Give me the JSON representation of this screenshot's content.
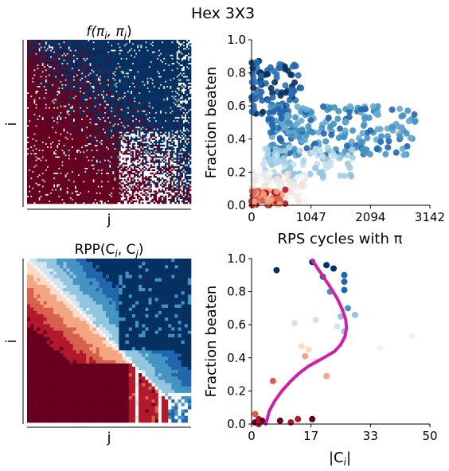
{
  "figure": {
    "title": "Hex 3X3"
  },
  "colors": {
    "dark_red": "#67001f",
    "dark_blue": "#053061",
    "curve": "#d21fa8"
  },
  "chart_data": [
    {
      "type": "heatmap",
      "title": "f(π_i, π_j)",
      "title_main": "f(π",
      "title_sub_i": "i",
      "title_mid": ", π",
      "title_sub_j": "j",
      "title_end": ")",
      "xlabel": "j",
      "ylabel": "i",
      "grid_size": 100,
      "description_values": "binary win matrix: lower-left mostly dark red (1), upper-right mostly dark blue (0), noisy near diagonal, white band near lower-right",
      "palette": [
        "#67001f",
        "#053061",
        "#ffffff"
      ]
    },
    {
      "type": "scatter",
      "xlabel": "RPS cycles with π",
      "ylabel": "Fraction beaten",
      "xlim": [
        0,
        3142
      ],
      "ylim": [
        0,
        1
      ],
      "xticks": [
        "0",
        "1047",
        "2094",
        "3142"
      ],
      "yticks": [
        "0.0",
        "0.2",
        "0.4",
        "0.6",
        "0.8",
        "1.0"
      ],
      "clusters": [
        {
          "name_hint": "dark blue cluster",
          "x_range": [
            0,
            900
          ],
          "y_range": [
            0.55,
            0.88
          ],
          "count": 90,
          "color": "#2166ac"
        },
        {
          "name_hint": "mid blue cluster",
          "x_range": [
            300,
            2900
          ],
          "y_range": [
            0.3,
            0.6
          ],
          "count": 260,
          "color": "#4393c3"
        },
        {
          "name_hint": "light blue cluster",
          "x_range": [
            200,
            1800
          ],
          "y_range": [
            0.15,
            0.35
          ],
          "count": 90,
          "color": "#92c5de"
        },
        {
          "name_hint": "near-white cluster",
          "x_range": [
            0,
            1000
          ],
          "y_range": [
            0.02,
            0.2
          ],
          "count": 80,
          "color": "#eef2f4"
        },
        {
          "name_hint": "red cluster",
          "x_range": [
            0,
            600
          ],
          "y_range": [
            0,
            0.1
          ],
          "count": 60,
          "color": "#d6604d"
        }
      ]
    },
    {
      "type": "heatmap",
      "title": "RPP(C_i, C_j)",
      "title_main": "RPP(C",
      "title_sub_i": "i",
      "title_mid": ", C",
      "title_sub_j": "j",
      "title_end": ")",
      "xlabel": "j",
      "ylabel": "i",
      "grid_size": 50,
      "description_values": "antisymmetric relative population performance: red gradient below diagonal, blue gradient above diagonal, solid dark red lower-left block, dark blue upper-right block",
      "palette": [
        "#67001f",
        "#b2182b",
        "#d6604d",
        "#f4a582",
        "#fddbc7",
        "#f7f7f7",
        "#d1e5f0",
        "#92c5de",
        "#4393c3",
        "#2166ac",
        "#053061"
      ]
    },
    {
      "type": "scatter",
      "xlabel": "|C_i|",
      "xlabel_main": "|C",
      "xlabel_sub": "i",
      "xlabel_end": "|",
      "ylabel": "Fraction beaten",
      "xlim": [
        0,
        50
      ],
      "ylim": [
        0,
        1
      ],
      "xticks": [
        "0",
        "17",
        "33",
        "50"
      ],
      "yticks": [
        "0.0",
        "0.2",
        "0.4",
        "0.6",
        "0.8",
        "1.0"
      ],
      "points": [
        {
          "x": 1,
          "y": 0.01,
          "c": "#67001f"
        },
        {
          "x": 2,
          "y": 0.03,
          "c": "#b2182b"
        },
        {
          "x": 1,
          "y": 0.06,
          "c": "#d6604d"
        },
        {
          "x": 3,
          "y": 0.02,
          "c": "#67001f"
        },
        {
          "x": 8,
          "y": 0.02,
          "c": "#67001f"
        },
        {
          "x": 11,
          "y": 0.01,
          "c": "#b2182b"
        },
        {
          "x": 13,
          "y": 0.03,
          "c": "#b2182b"
        },
        {
          "x": 17,
          "y": 0.03,
          "c": "#67001f"
        },
        {
          "x": 2,
          "y": 0.0,
          "c": "#b2182b"
        },
        {
          "x": 6,
          "y": 0.26,
          "c": "#d6604d"
        },
        {
          "x": 21,
          "y": 0.29,
          "c": "#f4a582"
        },
        {
          "x": 18,
          "y": 0.38,
          "c": "#fddbc7"
        },
        {
          "x": 15,
          "y": 0.41,
          "c": "#f4a582"
        },
        {
          "x": 16,
          "y": 0.45,
          "c": "#fddbc7"
        },
        {
          "x": 14,
          "y": 0.47,
          "c": "#fddbc7"
        },
        {
          "x": 36,
          "y": 0.46,
          "c": "#f0f3f5"
        },
        {
          "x": 45,
          "y": 0.53,
          "c": "#f0f3f5"
        },
        {
          "x": 24,
          "y": 0.59,
          "c": "#d1e5f0"
        },
        {
          "x": 18,
          "y": 0.63,
          "c": "#d1e5f0"
        },
        {
          "x": 12,
          "y": 0.61,
          "c": "#d1e5f0"
        },
        {
          "x": 26,
          "y": 0.56,
          "c": "#92c5de"
        },
        {
          "x": 25,
          "y": 0.65,
          "c": "#92c5de"
        },
        {
          "x": 29,
          "y": 0.66,
          "c": "#92c5de"
        },
        {
          "x": 27,
          "y": 0.7,
          "c": "#4393c3"
        },
        {
          "x": 22,
          "y": 0.8,
          "c": "#4393c3"
        },
        {
          "x": 26,
          "y": 0.81,
          "c": "#2166ac"
        },
        {
          "x": 20,
          "y": 0.89,
          "c": "#2166ac"
        },
        {
          "x": 26,
          "y": 0.86,
          "c": "#2166ac"
        },
        {
          "x": 21,
          "y": 0.96,
          "c": "#053061"
        },
        {
          "x": 23,
          "y": 0.94,
          "c": "#053061"
        },
        {
          "x": 17,
          "y": 0.98,
          "c": "#053061"
        },
        {
          "x": 7,
          "y": 0.93,
          "c": "#053061"
        },
        {
          "x": 26,
          "y": 0.9,
          "c": "#2166ac"
        }
      ],
      "curve": {
        "color": "#d21fa8",
        "x": [
          4.0,
          5.0,
          6.5,
          8.5,
          11.0,
          13.5,
          16.0,
          18.5,
          21.0,
          23.3,
          25.0,
          26.2,
          26.6,
          26.4,
          25.5,
          24.0,
          22.0,
          19.8,
          17.0
        ],
        "y": [
          0.0,
          0.08,
          0.14,
          0.2,
          0.26,
          0.31,
          0.35,
          0.38,
          0.41,
          0.44,
          0.48,
          0.53,
          0.58,
          0.63,
          0.69,
          0.76,
          0.83,
          0.9,
          0.99
        ]
      }
    }
  ]
}
